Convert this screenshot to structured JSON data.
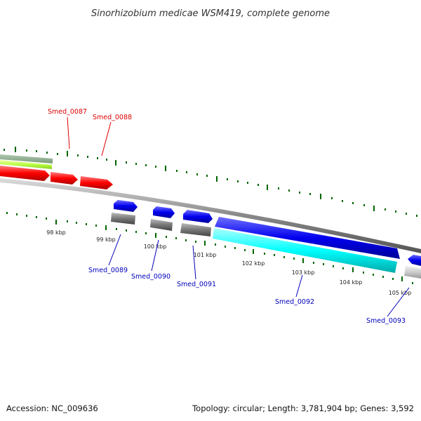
{
  "title": "Sinorhizobium medicae WSM419, complete genome",
  "footer": {
    "accession": "Accession: NC_009636",
    "summary": "Topology: circular; Length: 3,781,904 bp; Genes: 3,592"
  },
  "colors": {
    "forward_cds": "#0000ee",
    "reverse_cds": "#ff0000",
    "rna": "#00ffff",
    "forward_label": "#0000bb",
    "reverse_label": "#dd0000",
    "tick": "#006600",
    "backbone": "#888888"
  },
  "kbp_ticks": [
    "98 kbp",
    "99 kbp",
    "100 kbp",
    "101 kbp",
    "102 kbp",
    "103 kbp",
    "104 kbp",
    "105 kbp"
  ],
  "reverse_genes": [
    {
      "label": "Smed_0087"
    },
    {
      "label": "Smed_0088"
    }
  ],
  "forward_genes": [
    {
      "label": "Smed_0089"
    },
    {
      "label": "Smed_0090"
    },
    {
      "label": "Smed_0091"
    },
    {
      "label": "Smed_0092"
    },
    {
      "label": "Smed_0093"
    }
  ]
}
